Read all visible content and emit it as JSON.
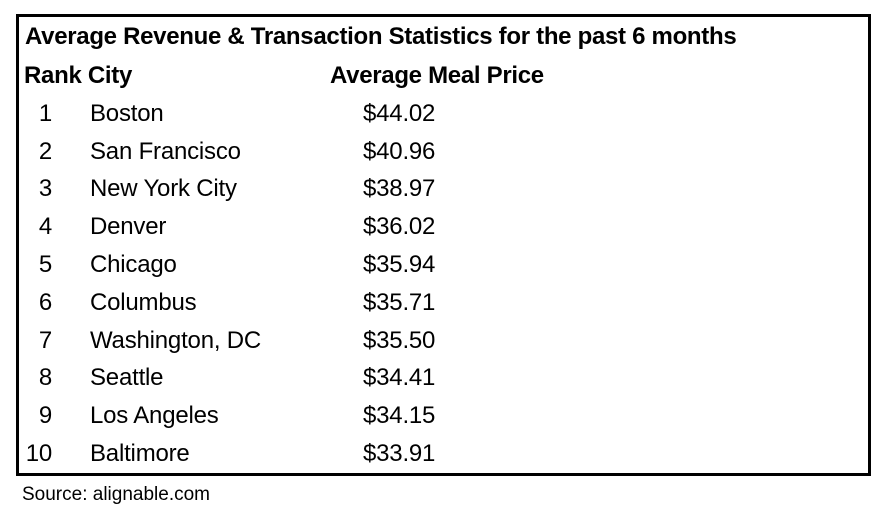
{
  "table": {
    "title": "Average Revenue & Transaction Statistics for the past 6 months",
    "header": {
      "rank_city": "Rank City",
      "price": "Average Meal Price"
    },
    "rows": [
      {
        "rank": "1",
        "city": "Boston",
        "price": "$44.02"
      },
      {
        "rank": "2",
        "city": "San Francisco",
        "price": "$40.96"
      },
      {
        "rank": "3",
        "city": "New York City",
        "price": "$38.97"
      },
      {
        "rank": "4",
        "city": "Denver",
        "price": "$36.02"
      },
      {
        "rank": "5",
        "city": "Chicago",
        "price": "$35.94"
      },
      {
        "rank": "6",
        "city": "Columbus",
        "price": "$35.71"
      },
      {
        "rank": "7",
        "city": "Washington, DC",
        "price": "$35.50"
      },
      {
        "rank": "8",
        "city": "Seattle",
        "price": "$34.41"
      },
      {
        "rank": "9",
        "city": "Los Angeles",
        "price": "$34.15"
      },
      {
        "rank": "10",
        "city": "Baltimore",
        "price": "$33.91"
      }
    ]
  },
  "source": "Source: alignable.com",
  "colors": {
    "text": "#000000",
    "border": "#000000",
    "background": "#ffffff"
  },
  "chart_data": {
    "type": "table",
    "title": "Average Revenue & Transaction Statistics for the past 6 months",
    "columns": [
      "Rank",
      "City",
      "Average Meal Price"
    ],
    "categories": [
      "Boston",
      "San Francisco",
      "New York City",
      "Denver",
      "Chicago",
      "Columbus",
      "Washington, DC",
      "Seattle",
      "Los Angeles",
      "Baltimore"
    ],
    "ranks": [
      1,
      2,
      3,
      4,
      5,
      6,
      7,
      8,
      9,
      10
    ],
    "values": [
      44.02,
      40.96,
      38.97,
      36.02,
      35.94,
      35.71,
      35.5,
      34.41,
      34.15,
      33.91
    ],
    "value_unit": "USD",
    "source": "Source: alignable.com"
  }
}
